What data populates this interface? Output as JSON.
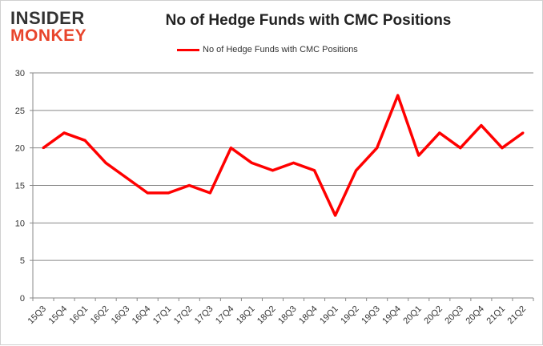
{
  "logo": {
    "line1": "INSIDER",
    "line2": "MONKEY"
  },
  "chart_data": {
    "type": "line",
    "title": "No of Hedge Funds with CMC Positions",
    "categories": [
      "15Q3",
      "15Q4",
      "16Q1",
      "16Q2",
      "16Q3",
      "16Q4",
      "17Q1",
      "17Q2",
      "17Q3",
      "17Q4",
      "18Q1",
      "18Q2",
      "18Q3",
      "18Q4",
      "19Q1",
      "19Q2",
      "19Q3",
      "19Q4",
      "20Q1",
      "20Q2",
      "20Q3",
      "20Q4",
      "21Q1",
      "21Q2"
    ],
    "series": [
      {
        "name": "No of Hedge Funds with CMC Positions",
        "color": "#ff0000",
        "values": [
          20,
          22,
          21,
          18,
          16,
          14,
          14,
          15,
          14,
          20,
          18,
          17,
          18,
          17,
          11,
          17,
          20,
          27,
          19,
          22,
          20,
          23,
          20,
          22
        ]
      }
    ],
    "ylim": [
      0,
      30
    ],
    "yticks": [
      0,
      5,
      10,
      15,
      20,
      25,
      30
    ],
    "grid": true,
    "legend": "top"
  }
}
